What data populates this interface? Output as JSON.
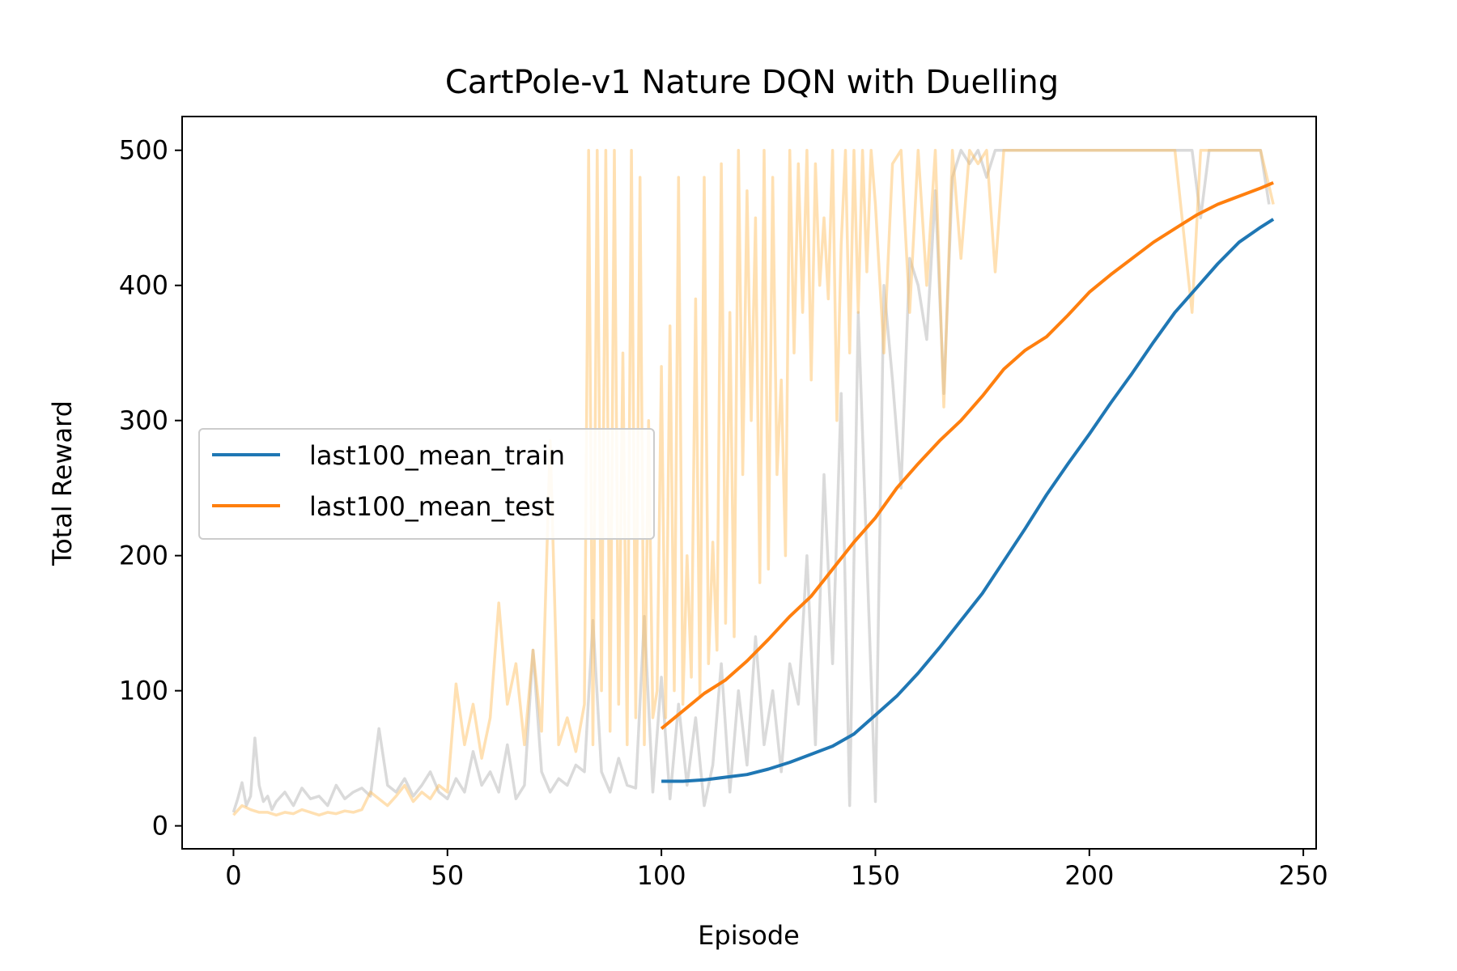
{
  "chart_data": {
    "type": "line",
    "title": "CartPole-v1 Nature DQN with Duelling",
    "xlabel": "Episode",
    "ylabel": "Total Reward",
    "xlim": [
      -12,
      253
    ],
    "ylim": [
      -17,
      525
    ],
    "xticks": [
      0,
      50,
      100,
      150,
      200,
      250
    ],
    "yticks": [
      0,
      100,
      200,
      300,
      400,
      500
    ],
    "grid": false,
    "legend_position": "center-left",
    "series": [
      {
        "name": "last100_mean_train",
        "color": "#1f77b4",
        "x": [
          100,
          105,
          110,
          115,
          120,
          125,
          130,
          135,
          140,
          145,
          150,
          155,
          160,
          165,
          170,
          175,
          180,
          185,
          190,
          195,
          200,
          205,
          210,
          215,
          220,
          225,
          230,
          235,
          240,
          243
        ],
        "y": [
          33,
          33,
          34,
          36,
          38,
          42,
          47,
          53,
          59,
          68,
          82,
          96,
          113,
          132,
          152,
          172,
          196,
          220,
          245,
          268,
          290,
          313,
          335,
          358,
          380,
          398,
          416,
          432,
          443,
          449
        ]
      },
      {
        "name": "last100_mean_test",
        "color": "#ff7f0e",
        "x": [
          100,
          105,
          110,
          115,
          120,
          125,
          130,
          135,
          140,
          145,
          150,
          155,
          160,
          165,
          170,
          175,
          180,
          185,
          190,
          195,
          200,
          205,
          210,
          215,
          220,
          225,
          230,
          235,
          240,
          243
        ],
        "y": [
          72,
          85,
          98,
          108,
          122,
          138,
          155,
          170,
          190,
          210,
          228,
          250,
          268,
          285,
          300,
          318,
          338,
          352,
          362,
          378,
          395,
          408,
          420,
          432,
          442,
          452,
          460,
          466,
          472,
          476
        ]
      },
      {
        "color": "#bbbbbb",
        "opacity": 0.55,
        "x": [
          0,
          1,
          2,
          3,
          4,
          5,
          6,
          7,
          8,
          9,
          10,
          12,
          14,
          16,
          18,
          20,
          22,
          24,
          26,
          28,
          30,
          32,
          34,
          36,
          38,
          40,
          42,
          44,
          46,
          48,
          50,
          52,
          54,
          56,
          58,
          60,
          62,
          64,
          66,
          68,
          70,
          72,
          74,
          76,
          78,
          80,
          82,
          84,
          86,
          88,
          90,
          92,
          94,
          96,
          98,
          100,
          102,
          104,
          106,
          108,
          110,
          112,
          114,
          116,
          118,
          120,
          122,
          124,
          126,
          128,
          130,
          132,
          134,
          136,
          138,
          140,
          142,
          144,
          146,
          148,
          150,
          152,
          154,
          156,
          158,
          160,
          162,
          164,
          166,
          168,
          170,
          172,
          174,
          176,
          178,
          180,
          185,
          190,
          195,
          200,
          205,
          210,
          215,
          220,
          224,
          226,
          228,
          230,
          235,
          238,
          240,
          242
        ],
        "y": [
          10,
          20,
          32,
          15,
          22,
          65,
          30,
          18,
          22,
          12,
          18,
          25,
          15,
          28,
          20,
          22,
          15,
          30,
          20,
          25,
          28,
          22,
          72,
          30,
          25,
          35,
          22,
          30,
          40,
          25,
          20,
          35,
          25,
          55,
          30,
          40,
          25,
          60,
          20,
          30,
          130,
          40,
          25,
          35,
          30,
          45,
          40,
          152,
          40,
          25,
          50,
          30,
          28,
          155,
          25,
          110,
          20,
          90,
          30,
          80,
          15,
          45,
          120,
          25,
          100,
          45,
          140,
          60,
          100,
          40,
          120,
          90,
          200,
          60,
          260,
          120,
          320,
          15,
          380,
          200,
          18,
          400,
          330,
          250,
          420,
          400,
          360,
          470,
          320,
          480,
          500,
          490,
          500,
          480,
          500,
          500,
          500,
          500,
          500,
          500,
          500,
          500,
          500,
          500,
          500,
          450,
          500,
          500,
          500,
          500,
          500,
          460
        ]
      },
      {
        "color": "#ffbb55",
        "opacity": 0.45,
        "x": [
          0,
          2,
          4,
          6,
          8,
          10,
          12,
          14,
          16,
          18,
          20,
          22,
          24,
          26,
          28,
          30,
          32,
          34,
          36,
          38,
          40,
          42,
          44,
          46,
          48,
          50,
          52,
          54,
          56,
          58,
          60,
          62,
          64,
          66,
          68,
          70,
          72,
          74,
          76,
          78,
          80,
          82,
          83,
          84,
          85,
          86,
          87,
          88,
          89,
          90,
          91,
          92,
          93,
          94,
          95,
          96,
          97,
          98,
          99,
          100,
          101,
          102,
          103,
          104,
          105,
          106,
          107,
          108,
          109,
          110,
          111,
          112,
          113,
          114,
          115,
          116,
          117,
          118,
          119,
          120,
          121,
          122,
          123,
          124,
          125,
          126,
          127,
          128,
          129,
          130,
          131,
          132,
          133,
          134,
          135,
          136,
          137,
          138,
          139,
          140,
          141,
          142,
          143,
          144,
          145,
          146,
          147,
          148,
          149,
          150,
          152,
          154,
          156,
          158,
          160,
          162,
          164,
          166,
          168,
          170,
          172,
          174,
          176,
          178,
          180,
          185,
          190,
          200,
          210,
          220,
          224,
          226,
          230,
          240,
          243
        ],
        "y": [
          8,
          15,
          12,
          10,
          10,
          8,
          10,
          9,
          12,
          10,
          8,
          10,
          9,
          11,
          10,
          12,
          25,
          20,
          15,
          22,
          30,
          18,
          25,
          20,
          30,
          25,
          105,
          60,
          90,
          50,
          80,
          165,
          90,
          120,
          60,
          130,
          70,
          285,
          60,
          80,
          55,
          90,
          500,
          60,
          500,
          100,
          500,
          70,
          500,
          90,
          350,
          60,
          500,
          80,
          480,
          60,
          300,
          80,
          100,
          340,
          80,
          370,
          100,
          480,
          90,
          200,
          110,
          390,
          95,
          480,
          120,
          210,
          130,
          490,
          150,
          380,
          140,
          500,
          260,
          470,
          300,
          450,
          180,
          500,
          190,
          480,
          260,
          330,
          200,
          500,
          350,
          490,
          380,
          500,
          330,
          490,
          400,
          450,
          390,
          500,
          300,
          430,
          500,
          350,
          500,
          380,
          500,
          410,
          500,
          460,
          350,
          490,
          500,
          380,
          500,
          400,
          500,
          310,
          500,
          420,
          500,
          490,
          500,
          410,
          500,
          500,
          500,
          500,
          500,
          500,
          380,
          500,
          500,
          500,
          460
        ]
      }
    ]
  }
}
